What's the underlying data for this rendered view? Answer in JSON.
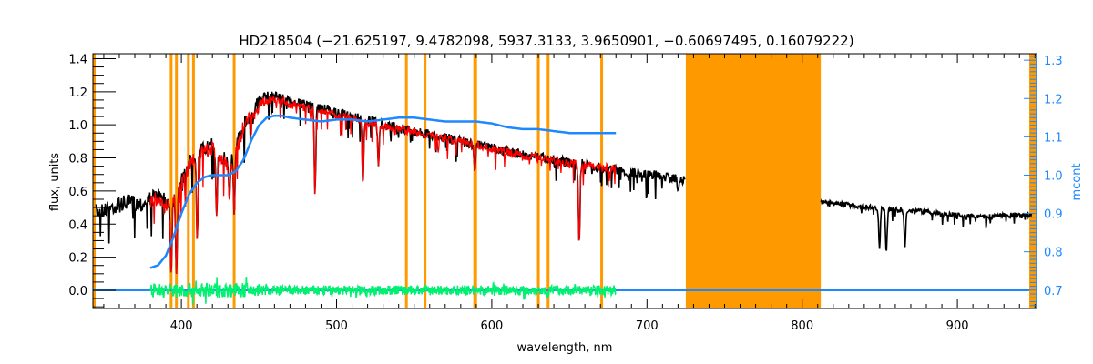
{
  "chart_data": {
    "type": "line",
    "title": "HD218504   (−21.625197, 9.4782098, 5937.3133, 3.9650901, −0.60697495, 0.16079222)",
    "xlabel": "wavelength, nm",
    "ylabel": "flux, units",
    "y2label": "mcont",
    "xlim": [
      343,
      951
    ],
    "ylim": [
      -0.11,
      1.43
    ],
    "y2lim": [
      0.652,
      1.317
    ],
    "xticks": [
      "400",
      "500",
      "600",
      "700",
      "800",
      "900"
    ],
    "xtick_values": [
      400,
      500,
      600,
      700,
      800,
      900
    ],
    "yticks": [
      "0.0",
      "0.2",
      "0.4",
      "0.6",
      "0.8",
      "1.0",
      "1.2",
      "1.4"
    ],
    "ytick_values": [
      0,
      0.2,
      0.4,
      0.6,
      0.8,
      1.0,
      1.2,
      1.4
    ],
    "y2ticks": [
      "0.7",
      "0.8",
      "0.9",
      "1.0",
      "1.1",
      "1.2",
      "1.3"
    ],
    "y2tick_values": [
      0.7,
      0.8,
      0.9,
      1.0,
      1.1,
      1.2,
      1.3
    ],
    "colors": {
      "observed": "#000000",
      "model": "#ff0000",
      "continuum": "#1e88ff",
      "residual": "#00f070",
      "mask": "#ff9900",
      "masked_point": "#ffff00"
    },
    "series": [
      {
        "name": "observed flux",
        "axis": "left",
        "segments": [
          {
            "x": [
              345,
              355,
              365,
              375,
              380,
              385,
              390,
              395,
              400,
              405,
              410,
              415,
              420,
              425,
              430,
              435,
              440,
              445,
              450,
              455,
              460,
              465,
              470,
              480,
              490,
              500,
              510,
              520,
              530,
              540,
              550,
              560,
              570,
              580,
              590,
              600,
              610,
              620,
              630,
              640,
              650,
              660,
              670,
              680,
              690,
              700,
              710,
              720,
              725
            ],
            "y": [
              0.52,
              0.55,
              0.58,
              0.57,
              0.6,
              0.62,
              0.58,
              0.6,
              0.7,
              0.82,
              0.9,
              0.9,
              0.92,
              0.86,
              0.82,
              0.9,
              1.05,
              1.12,
              1.18,
              1.2,
              1.21,
              1.19,
              1.17,
              1.15,
              1.13,
              1.1,
              1.08,
              1.06,
              1.03,
              1.01,
              0.99,
              0.97,
              0.95,
              0.93,
              0.91,
              0.89,
              0.87,
              0.85,
              0.84,
              0.82,
              0.8,
              0.79,
              0.77,
              0.76,
              0.74,
              0.73,
              0.72,
              0.7,
              0.69
            ]
          },
          {
            "x": [
              812,
              820,
              840,
              860,
              880,
              900,
              920,
              935,
              948
            ],
            "y": [
              0.55,
              0.54,
              0.52,
              0.5,
              0.49,
              0.47,
              0.46,
              0.47,
              0.47
            ]
          }
        ],
        "noise": 0.06,
        "absorption_lines": [
          [
            393.4,
            0.1
          ],
          [
            396.8,
            0.1
          ],
          [
            410.2,
            0.3
          ],
          [
            422.7,
            0.45
          ],
          [
            431,
            0.55
          ],
          [
            434,
            0.45
          ],
          [
            486.1,
            0.58
          ],
          [
            517,
            0.64
          ],
          [
            527,
            0.75
          ],
          [
            589,
            0.72
          ],
          [
            656.3,
            0.28
          ],
          [
            686,
            0.7
          ],
          [
            720,
            0.6
          ],
          [
            849.8,
            0.25
          ],
          [
            854.2,
            0.23
          ],
          [
            866.2,
            0.26
          ]
        ]
      },
      {
        "name": "model flux",
        "axis": "left",
        "x": [
          380,
          385,
          390,
          395,
          400,
          405,
          410,
          415,
          420,
          425,
          430,
          435,
          440,
          445,
          450,
          455,
          460,
          465,
          470,
          480,
          490,
          500,
          510,
          520,
          530,
          540,
          550,
          560,
          570,
          580,
          590,
          600,
          610,
          620,
          630,
          640,
          650,
          660,
          670,
          680
        ],
        "y": [
          0.58,
          0.6,
          0.56,
          0.6,
          0.68,
          0.8,
          0.88,
          0.88,
          0.9,
          0.84,
          0.8,
          0.88,
          1.03,
          1.1,
          1.15,
          1.17,
          1.18,
          1.17,
          1.15,
          1.13,
          1.11,
          1.08,
          1.06,
          1.04,
          1.02,
          1.0,
          0.98,
          0.96,
          0.94,
          0.92,
          0.9,
          0.88,
          0.86,
          0.84,
          0.83,
          0.81,
          0.79,
          0.78,
          0.77,
          0.76
        ],
        "noise": 0.05
      },
      {
        "name": "mcont",
        "axis": "right",
        "x": [
          380,
          385,
          390,
          395,
          400,
          405,
          410,
          415,
          420,
          425,
          430,
          435,
          440,
          445,
          450,
          455,
          460,
          465,
          470,
          480,
          490,
          500,
          510,
          520,
          530,
          540,
          550,
          560,
          570,
          580,
          590,
          600,
          610,
          620,
          630,
          640,
          650,
          660,
          670,
          680
        ],
        "y": [
          0.758,
          0.765,
          0.79,
          0.84,
          0.9,
          0.95,
          0.98,
          0.995,
          1.0,
          1.0,
          1.0,
          1.01,
          1.04,
          1.09,
          1.13,
          1.15,
          1.155,
          1.155,
          1.15,
          1.145,
          1.14,
          1.145,
          1.145,
          1.14,
          1.145,
          1.15,
          1.15,
          1.145,
          1.14,
          1.14,
          1.14,
          1.135,
          1.125,
          1.12,
          1.12,
          1.115,
          1.11,
          1.11,
          1.11,
          1.11
        ]
      },
      {
        "name": "residual",
        "axis": "left",
        "x_range": [
          380,
          680
        ],
        "center": 0.0,
        "noise": 0.03
      },
      {
        "name": "zero level",
        "axis": "left",
        "x_range": [
          343,
          951
        ],
        "value": 0.0
      }
    ],
    "mask_lines": [
      393.4,
      396.8,
      404.5,
      407.8,
      434.0,
      545.0,
      557.0,
      589.0,
      589.6,
      630.0,
      636.3,
      670.8
    ],
    "mask_band": [
      725,
      812
    ],
    "grid": false
  }
}
